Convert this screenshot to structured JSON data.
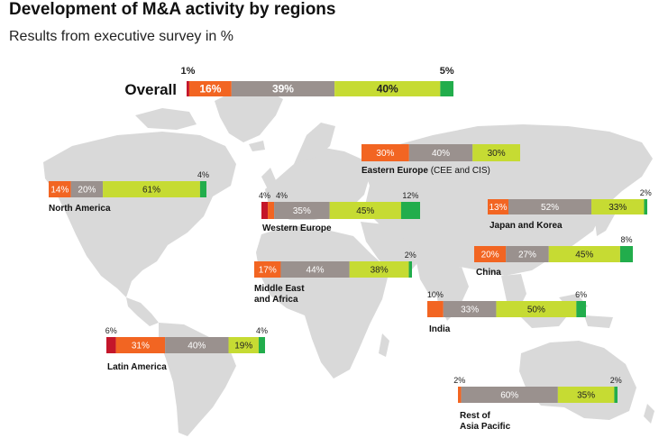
{
  "header": {
    "title": "Development of M&A activity by regions",
    "subtitle": "Results from executive survey in %"
  },
  "colors": {
    "strong_decrease": "#c4162a",
    "decrease": "#f26522",
    "unchanged": "#9a918e",
    "increase": "#c6db33",
    "strong_increase": "#22ad4c",
    "map": "#d9d9d9"
  },
  "chart_data": {
    "type": "bar",
    "orientation": "horizontal",
    "stacked": true,
    "xlim": [
      0,
      100
    ],
    "unit": "%",
    "regions": [
      {
        "id": "overall",
        "name": "Overall",
        "values": [
          1,
          16,
          39,
          40,
          5
        ]
      },
      {
        "id": "eastern-europe",
        "name": "Eastern Europe",
        "name_suffix": " (CEE and CIS)",
        "values": [
          0,
          30,
          40,
          30,
          0
        ]
      },
      {
        "id": "north-america",
        "name": "North America",
        "values": [
          0,
          14,
          20,
          61,
          4
        ]
      },
      {
        "id": "western-europe",
        "name": "Western Europe",
        "values": [
          4,
          4,
          35,
          45,
          12
        ]
      },
      {
        "id": "japan-korea",
        "name": "Japan and Korea",
        "values": [
          0,
          13,
          52,
          33,
          2
        ]
      },
      {
        "id": "middle-east-africa",
        "name": "Middle East and Africa",
        "name_lines": [
          "Middle East",
          "and Africa"
        ],
        "values": [
          0,
          17,
          44,
          38,
          2
        ]
      },
      {
        "id": "china",
        "name": "China",
        "values": [
          0,
          20,
          27,
          45,
          8
        ]
      },
      {
        "id": "india",
        "name": "India",
        "values": [
          0,
          10,
          33,
          50,
          6
        ]
      },
      {
        "id": "latin-america",
        "name": "Latin America",
        "values": [
          6,
          31,
          40,
          19,
          4
        ]
      },
      {
        "id": "rest-asia-pacific",
        "name": "Rest of Asia Pacific",
        "name_lines": [
          "Rest of",
          "Asia Pacific"
        ],
        "values": [
          0,
          2,
          60,
          35,
          2
        ]
      }
    ]
  }
}
